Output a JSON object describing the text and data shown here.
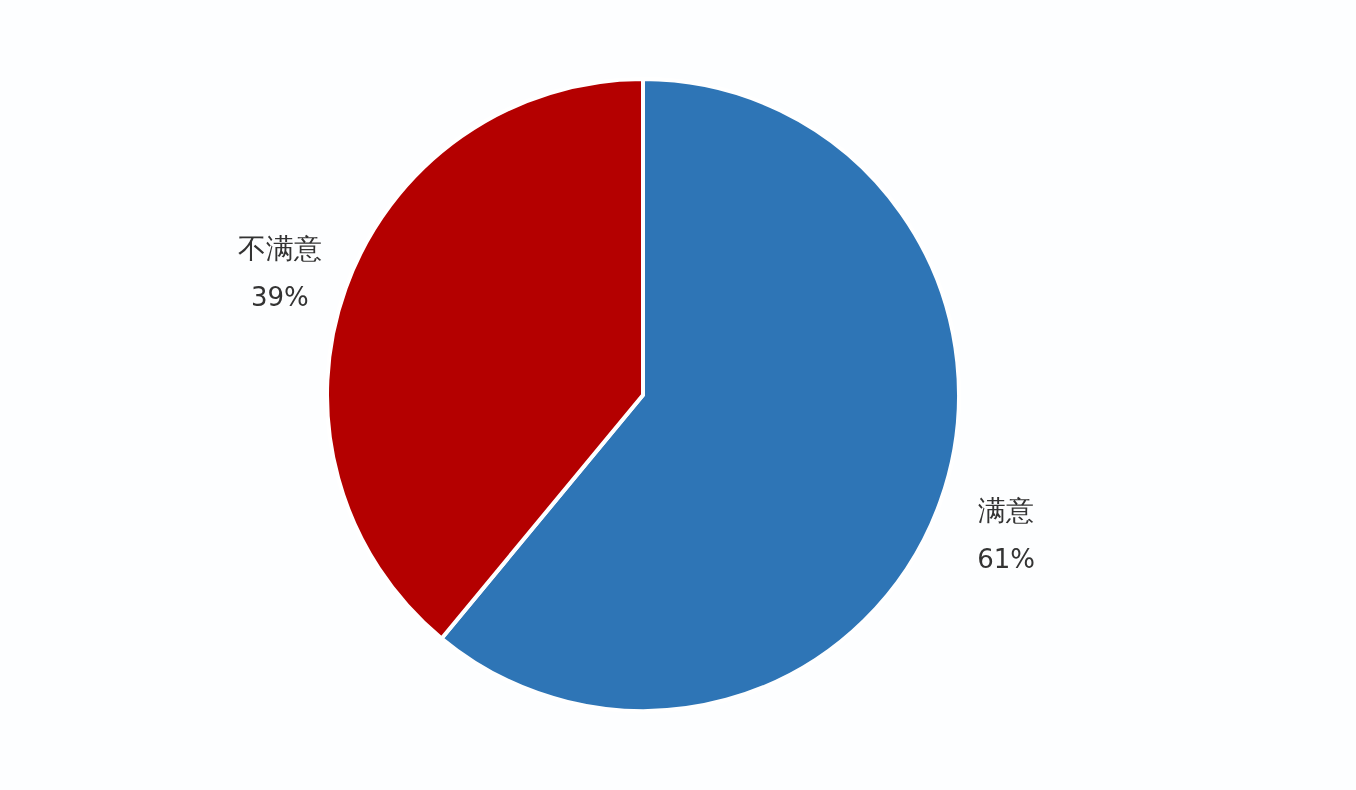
{
  "chart_data": {
    "type": "pie",
    "categories": [
      "满意",
      "不满意"
    ],
    "values": [
      61,
      39
    ],
    "colors": [
      "#2e75b6",
      "#b40000"
    ],
    "value_labels": [
      "61%",
      "39%"
    ]
  }
}
